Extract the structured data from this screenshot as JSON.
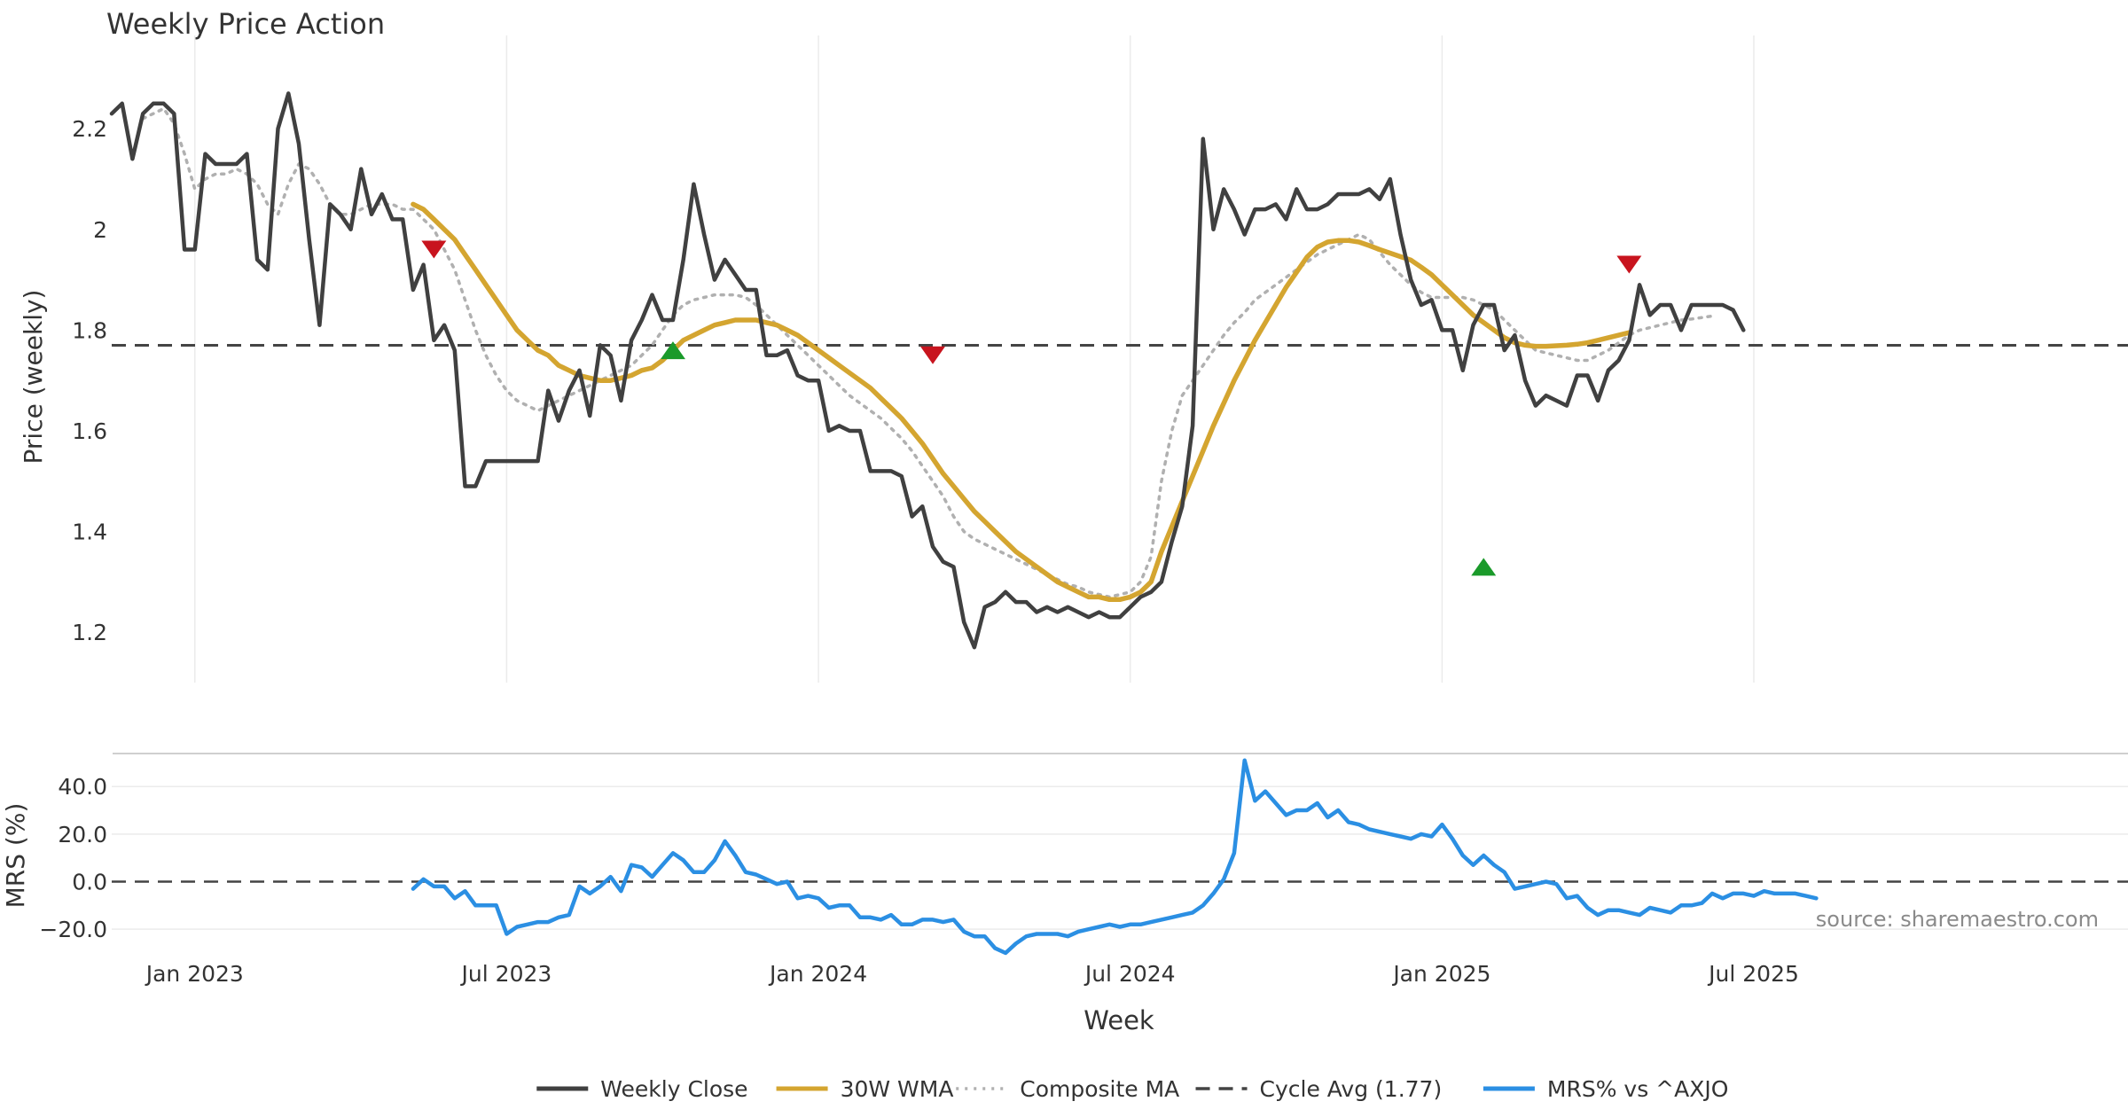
{
  "chart_data": [
    {
      "type": "line",
      "title": "Weekly Price Action",
      "xlabel": "",
      "ylabel": "Price (weekly)",
      "ylim": [
        1.1,
        2.35
      ],
      "yticks": [
        1.2,
        1.4,
        1.6,
        1.8,
        2,
        2.2
      ],
      "ytick_labels": [
        "1.2",
        "1.4",
        "1.6",
        "1.8",
        "2",
        "2.2"
      ],
      "week_range": [
        0,
        194
      ],
      "series": [
        {
          "name": "Weekly Close",
          "color": "#404040",
          "style": "solid",
          "values": [
            2.23,
            2.25,
            2.14,
            2.23,
            2.25,
            2.25,
            2.23,
            1.96,
            1.96,
            2.15,
            2.13,
            2.13,
            2.13,
            2.15,
            1.94,
            1.92,
            2.2,
            2.27,
            2.17,
            1.98,
            1.81,
            2.05,
            2.03,
            2.0,
            2.12,
            2.03,
            2.07,
            2.02,
            2.02,
            1.88,
            1.93,
            1.78,
            1.81,
            1.76,
            1.49,
            1.49,
            1.54,
            1.54,
            1.54,
            1.54,
            1.54,
            1.54,
            1.68,
            1.62,
            1.68,
            1.72,
            1.63,
            1.77,
            1.75,
            1.66,
            1.78,
            1.82,
            1.87,
            1.82,
            1.82,
            1.94,
            2.09,
            1.99,
            1.9,
            1.94,
            1.91,
            1.88,
            1.88,
            1.75,
            1.75,
            1.76,
            1.71,
            1.7,
            1.7,
            1.6,
            1.61,
            1.6,
            1.6,
            1.52,
            1.52,
            1.52,
            1.51,
            1.43,
            1.45,
            1.37,
            1.34,
            1.33,
            1.22,
            1.17,
            1.25,
            1.26,
            1.28,
            1.26,
            1.26,
            1.24,
            1.25,
            1.24,
            1.25,
            1.24,
            1.23,
            1.24,
            1.23,
            1.23,
            1.25,
            1.27,
            1.28,
            1.3,
            1.38,
            1.45,
            1.61,
            2.18,
            2.0,
            2.08,
            2.04,
            1.99,
            2.04,
            2.04,
            2.05,
            2.02,
            2.08,
            2.04,
            2.04,
            2.05,
            2.07,
            2.07,
            2.07,
            2.08,
            2.06,
            2.1,
            1.99,
            1.9,
            1.85,
            1.86,
            1.8,
            1.8,
            1.72,
            1.81,
            1.85,
            1.85,
            1.76,
            1.79,
            1.7,
            1.65,
            1.67,
            1.66,
            1.65,
            1.71,
            1.71,
            1.66,
            1.72,
            1.74,
            1.78,
            1.89,
            1.83,
            1.85,
            1.85,
            1.8,
            1.85,
            1.85,
            1.85,
            1.85,
            1.84,
            1.8
          ]
        },
        {
          "name": "30W WMA",
          "color": "#D4A530",
          "style": "solid",
          "start_week": 29,
          "values": [
            2.05,
            2.04,
            2.02,
            2.0,
            1.98,
            1.95,
            1.92,
            1.89,
            1.86,
            1.83,
            1.8,
            1.78,
            1.76,
            1.75,
            1.73,
            1.72,
            1.71,
            1.705,
            1.7,
            1.7,
            1.705,
            1.71,
            1.72,
            1.725,
            1.74,
            1.76,
            1.78,
            1.79,
            1.8,
            1.81,
            1.815,
            1.82,
            1.82,
            1.82,
            1.815,
            1.81,
            1.8,
            1.79,
            1.775,
            1.76,
            1.745,
            1.73,
            1.715,
            1.7,
            1.685,
            1.665,
            1.645,
            1.625,
            1.6,
            1.575,
            1.545,
            1.515,
            1.49,
            1.465,
            1.44,
            1.42,
            1.4,
            1.38,
            1.36,
            1.345,
            1.33,
            1.315,
            1.3,
            1.29,
            1.28,
            1.27,
            1.27,
            1.265,
            1.265,
            1.27,
            1.28,
            1.3,
            1.36,
            1.41,
            1.46,
            1.51,
            1.56,
            1.61,
            1.655,
            1.7,
            1.74,
            1.78,
            1.815,
            1.85,
            1.885,
            1.915,
            1.945,
            1.965,
            1.975,
            1.978,
            1.978,
            1.975,
            1.968,
            1.96,
            1.953,
            1.946,
            1.939,
            1.925,
            1.91,
            1.89,
            1.87,
            1.85,
            1.83,
            1.815,
            1.8,
            1.785,
            1.775,
            1.77,
            1.768,
            1.768,
            1.769,
            1.77,
            1.772,
            1.775,
            1.78,
            1.785,
            1.79,
            1.795
          ]
        },
        {
          "name": "Composite MA",
          "color": "#B0B0B0",
          "style": "dotted",
          "start_week": 3,
          "values": [
            2.22,
            2.23,
            2.24,
            2.21,
            2.15,
            2.08,
            2.1,
            2.11,
            2.11,
            2.12,
            2.11,
            2.09,
            2.05,
            2.03,
            2.09,
            2.13,
            2.12,
            2.09,
            2.05,
            2.03,
            2.03,
            2.04,
            2.05,
            2.05,
            2.05,
            2.04,
            2.04,
            2.02,
            2.0,
            1.96,
            1.92,
            1.86,
            1.8,
            1.75,
            1.71,
            1.68,
            1.66,
            1.65,
            1.64,
            1.65,
            1.66,
            1.67,
            1.68,
            1.69,
            1.7,
            1.71,
            1.72,
            1.73,
            1.75,
            1.77,
            1.8,
            1.83,
            1.85,
            1.86,
            1.865,
            1.87,
            1.87,
            1.87,
            1.865,
            1.85,
            1.83,
            1.81,
            1.79,
            1.77,
            1.75,
            1.73,
            1.71,
            1.69,
            1.67,
            1.655,
            1.64,
            1.625,
            1.605,
            1.585,
            1.56,
            1.53,
            1.5,
            1.47,
            1.43,
            1.4,
            1.385,
            1.375,
            1.365,
            1.355,
            1.345,
            1.335,
            1.325,
            1.315,
            1.305,
            1.295,
            1.29,
            1.28,
            1.275,
            1.27,
            1.275,
            1.28,
            1.3,
            1.35,
            1.5,
            1.6,
            1.67,
            1.7,
            1.73,
            1.76,
            1.79,
            1.815,
            1.835,
            1.86,
            1.875,
            1.89,
            1.905,
            1.92,
            1.935,
            1.95,
            1.96,
            1.97,
            1.98,
            1.99,
            1.98,
            1.955,
            1.93,
            1.91,
            1.89,
            1.875,
            1.865,
            1.865,
            1.865,
            1.865,
            1.86,
            1.85,
            1.84,
            1.82,
            1.8,
            1.78,
            1.76,
            1.755,
            1.75,
            1.745,
            1.74,
            1.74,
            1.75,
            1.76,
            1.775,
            1.79,
            1.8,
            1.805,
            1.81,
            1.815,
            1.82,
            1.822,
            1.825,
            1.828
          ]
        }
      ],
      "reference_line": {
        "name": "Cycle Avg (1.77)",
        "value": 1.77,
        "color": "#444444",
        "style": "dashed"
      },
      "markers": [
        {
          "type": "sell",
          "week": 31,
          "value": 1.96,
          "color": "#C8141E"
        },
        {
          "type": "buy",
          "week": 54,
          "value": 1.76,
          "color": "#1A9A2A"
        },
        {
          "type": "sell",
          "week": 79,
          "value": 1.75,
          "color": "#C8141E"
        },
        {
          "type": "buy",
          "week": 132,
          "value": 1.33,
          "color": "#1A9A2A"
        },
        {
          "type": "sell",
          "week": 146,
          "value": 1.93,
          "color": "#C8141E"
        }
      ]
    },
    {
      "type": "line",
      "title": "",
      "xlabel": "Week",
      "ylabel": "MRS (%)",
      "ylim": [
        -30,
        52
      ],
      "yticks": [
        -20,
        0,
        20,
        40
      ],
      "ytick_labels": [
        "−20.0",
        "0.0",
        "20.0",
        "40.0"
      ],
      "x_ticks": [
        "Jan 2023",
        "Jul 2023",
        "Jan 2024",
        "Jul 2024",
        "Jan 2025",
        "Jul 2025"
      ],
      "x_tick_weeks": [
        8,
        38,
        68,
        98,
        128,
        158
      ],
      "week_range": [
        0,
        194
      ],
      "series": [
        {
          "name": "MRS% vs ^AXJO",
          "color": "#2B8FE3",
          "style": "solid",
          "start_week": 29,
          "values": [
            -3,
            1,
            -2,
            -2,
            -7,
            -4,
            -10,
            -10,
            -10,
            -22,
            -19,
            -18,
            -17,
            -17,
            -15,
            -14,
            -2,
            -5,
            -2,
            2,
            -4,
            7,
            6,
            2,
            7,
            12,
            9,
            4,
            4,
            9,
            17,
            11,
            4,
            3,
            1,
            -1,
            0,
            -7,
            -6,
            -7,
            -11,
            -10,
            -10,
            -15,
            -15,
            -16,
            -14,
            -18,
            -18,
            -16,
            -16,
            -17,
            -16,
            -21,
            -23,
            -23,
            -28,
            -30,
            -26,
            -23,
            -22,
            -22,
            -22,
            -23,
            -21,
            -20,
            -19,
            -18,
            -19,
            -18,
            -18,
            -17,
            -16,
            -15,
            -14,
            -13,
            -10,
            -5,
            1,
            12,
            51,
            34,
            38,
            33,
            28,
            30,
            30,
            33,
            27,
            30,
            25,
            24,
            22,
            21,
            20,
            19,
            18,
            20,
            19,
            24,
            18,
            11,
            7,
            11,
            7,
            4,
            -3,
            -2,
            -1,
            0,
            -1,
            -7,
            -6,
            -11,
            -14,
            -12,
            -12,
            -13,
            -14,
            -11,
            -12,
            -13,
            -10,
            -10,
            -9,
            -5,
            -7,
            -5,
            -5,
            -6,
            -4,
            -5,
            -5,
            -5,
            -6,
            -7
          ]
        }
      ],
      "reference_line": {
        "value": 0,
        "color": "#444444",
        "style": "dashed"
      },
      "annotation": "source: sharemaestro.com"
    }
  ],
  "legend": [
    {
      "label": "Weekly Close",
      "color": "#404040",
      "style": "solid"
    },
    {
      "label": "30W WMA",
      "color": "#D4A530",
      "style": "solid"
    },
    {
      "label": "Composite MA",
      "color": "#B0B0B0",
      "style": "dotted"
    },
    {
      "label": "Cycle Avg (1.77)",
      "color": "#444444",
      "style": "dashed"
    },
    {
      "label": "MRS% vs ^AXJO",
      "color": "#2B8FE3",
      "style": "solid"
    }
  ]
}
